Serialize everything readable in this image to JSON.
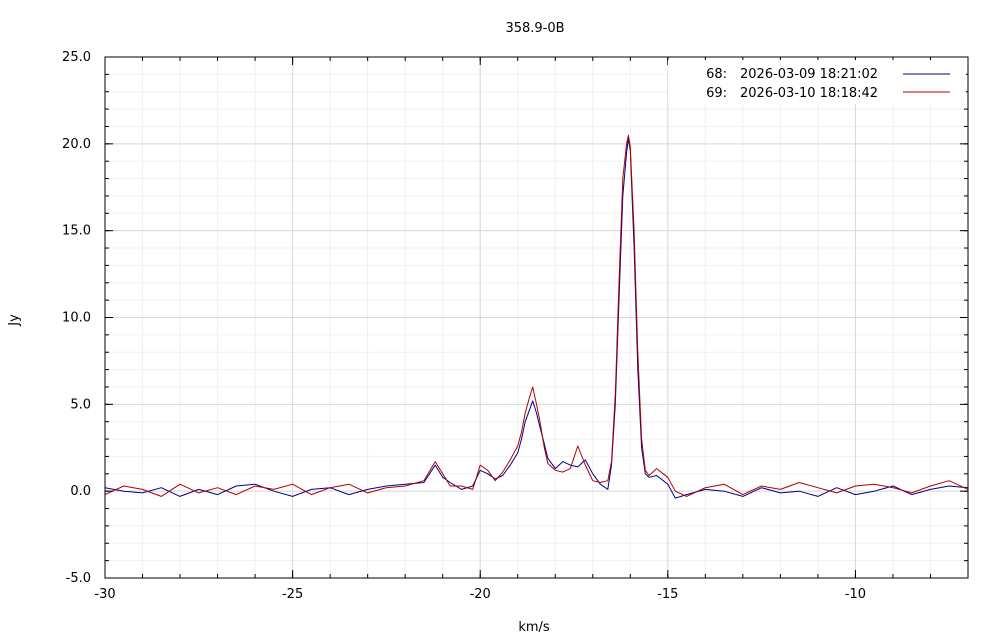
{
  "chart_data": {
    "type": "line",
    "title": "358.9-0B",
    "xlabel": "km/s",
    "ylabel": "Jy",
    "xlim": [
      -30,
      -7
    ],
    "ylim": [
      -5,
      25
    ],
    "x_ticks": [
      -30,
      -25,
      -20,
      -15,
      -10
    ],
    "x_tick_labels": [
      "-30",
      "-25",
      "-20",
      "-15",
      "-10"
    ],
    "y_ticks": [
      -5,
      0,
      5,
      10,
      15,
      20,
      25
    ],
    "y_tick_labels": [
      "-5.0",
      "0.0",
      "5.0",
      "10.0",
      "15.0",
      "20.0",
      "25.0"
    ],
    "grid": true,
    "legend_position": "top-right",
    "series": [
      {
        "id": "68",
        "date": "2026-03-09 18:21:02",
        "color": "#00008b",
        "x": [
          -30.0,
          -29.5,
          -29.0,
          -28.5,
          -28.0,
          -27.5,
          -27.0,
          -26.5,
          -26.0,
          -25.5,
          -25.0,
          -24.5,
          -24.0,
          -23.5,
          -23.0,
          -22.5,
          -22.0,
          -21.5,
          -21.2,
          -21.0,
          -20.8,
          -20.5,
          -20.2,
          -20.0,
          -19.8,
          -19.6,
          -19.4,
          -19.2,
          -19.0,
          -18.9,
          -18.8,
          -18.7,
          -18.6,
          -18.5,
          -18.4,
          -18.3,
          -18.2,
          -18.0,
          -17.8,
          -17.6,
          -17.4,
          -17.2,
          -17.0,
          -16.8,
          -16.6,
          -16.5,
          -16.4,
          -16.3,
          -16.2,
          -16.1,
          -16.05,
          -16.0,
          -15.9,
          -15.8,
          -15.7,
          -15.6,
          -15.5,
          -15.3,
          -15.0,
          -14.8,
          -14.5,
          -14.0,
          -13.5,
          -13.0,
          -12.5,
          -12.0,
          -11.5,
          -11.0,
          -10.5,
          -10.0,
          -9.5,
          -9.0,
          -8.5,
          -8.0,
          -7.5,
          -7.0
        ],
        "y": [
          0.2,
          0.0,
          -0.1,
          0.2,
          -0.3,
          0.1,
          -0.2,
          0.3,
          0.4,
          0.0,
          -0.3,
          0.1,
          0.2,
          -0.2,
          0.1,
          0.3,
          0.4,
          0.5,
          1.5,
          0.8,
          0.5,
          0.1,
          0.3,
          1.2,
          1.0,
          0.7,
          0.9,
          1.5,
          2.2,
          3.0,
          4.0,
          4.6,
          5.2,
          4.5,
          3.6,
          2.8,
          1.9,
          1.3,
          1.7,
          1.5,
          1.4,
          1.8,
          1.0,
          0.4,
          0.1,
          1.5,
          5.0,
          11.0,
          17.0,
          19.5,
          20.3,
          19.6,
          14.0,
          7.0,
          2.5,
          1.0,
          0.8,
          0.9,
          0.4,
          -0.4,
          -0.2,
          0.1,
          0.0,
          -0.3,
          0.2,
          -0.1,
          0.0,
          -0.3,
          0.2,
          -0.2,
          0.0,
          0.3,
          -0.2,
          0.1,
          0.3,
          0.2
        ]
      },
      {
        "id": "69",
        "date": "2026-03-10 18:18:42",
        "color": "#b00000",
        "x": [
          -30.0,
          -29.5,
          -29.0,
          -28.5,
          -28.0,
          -27.5,
          -27.0,
          -26.5,
          -26.0,
          -25.5,
          -25.0,
          -24.5,
          -24.0,
          -23.5,
          -23.0,
          -22.5,
          -22.0,
          -21.5,
          -21.2,
          -21.0,
          -20.8,
          -20.5,
          -20.2,
          -20.0,
          -19.8,
          -19.6,
          -19.4,
          -19.2,
          -19.0,
          -18.9,
          -18.8,
          -18.7,
          -18.6,
          -18.5,
          -18.4,
          -18.3,
          -18.2,
          -18.0,
          -17.8,
          -17.6,
          -17.4,
          -17.2,
          -17.0,
          -16.8,
          -16.6,
          -16.5,
          -16.4,
          -16.3,
          -16.2,
          -16.1,
          -16.05,
          -16.0,
          -15.9,
          -15.8,
          -15.7,
          -15.6,
          -15.5,
          -15.3,
          -15.0,
          -14.8,
          -14.5,
          -14.0,
          -13.5,
          -13.0,
          -12.5,
          -12.0,
          -11.5,
          -11.0,
          -10.5,
          -10.0,
          -9.5,
          -9.0,
          -8.5,
          -8.0,
          -7.5,
          -7.0
        ],
        "y": [
          -0.2,
          0.3,
          0.1,
          -0.3,
          0.4,
          -0.1,
          0.2,
          -0.2,
          0.3,
          0.1,
          0.4,
          -0.2,
          0.2,
          0.4,
          -0.1,
          0.2,
          0.3,
          0.6,
          1.7,
          1.0,
          0.3,
          0.3,
          0.1,
          1.5,
          1.2,
          0.6,
          1.1,
          1.8,
          2.6,
          3.4,
          4.5,
          5.3,
          6.0,
          5.0,
          3.9,
          2.6,
          1.6,
          1.2,
          1.1,
          1.3,
          2.6,
          1.5,
          0.6,
          0.5,
          0.6,
          1.7,
          5.6,
          12.0,
          18.0,
          20.0,
          20.5,
          19.8,
          15.0,
          8.0,
          3.0,
          1.2,
          0.9,
          1.3,
          0.8,
          0.0,
          -0.3,
          0.2,
          0.4,
          -0.2,
          0.3,
          0.1,
          0.5,
          0.2,
          -0.1,
          0.3,
          0.4,
          0.2,
          -0.1,
          0.3,
          0.6,
          0.1
        ]
      }
    ]
  }
}
